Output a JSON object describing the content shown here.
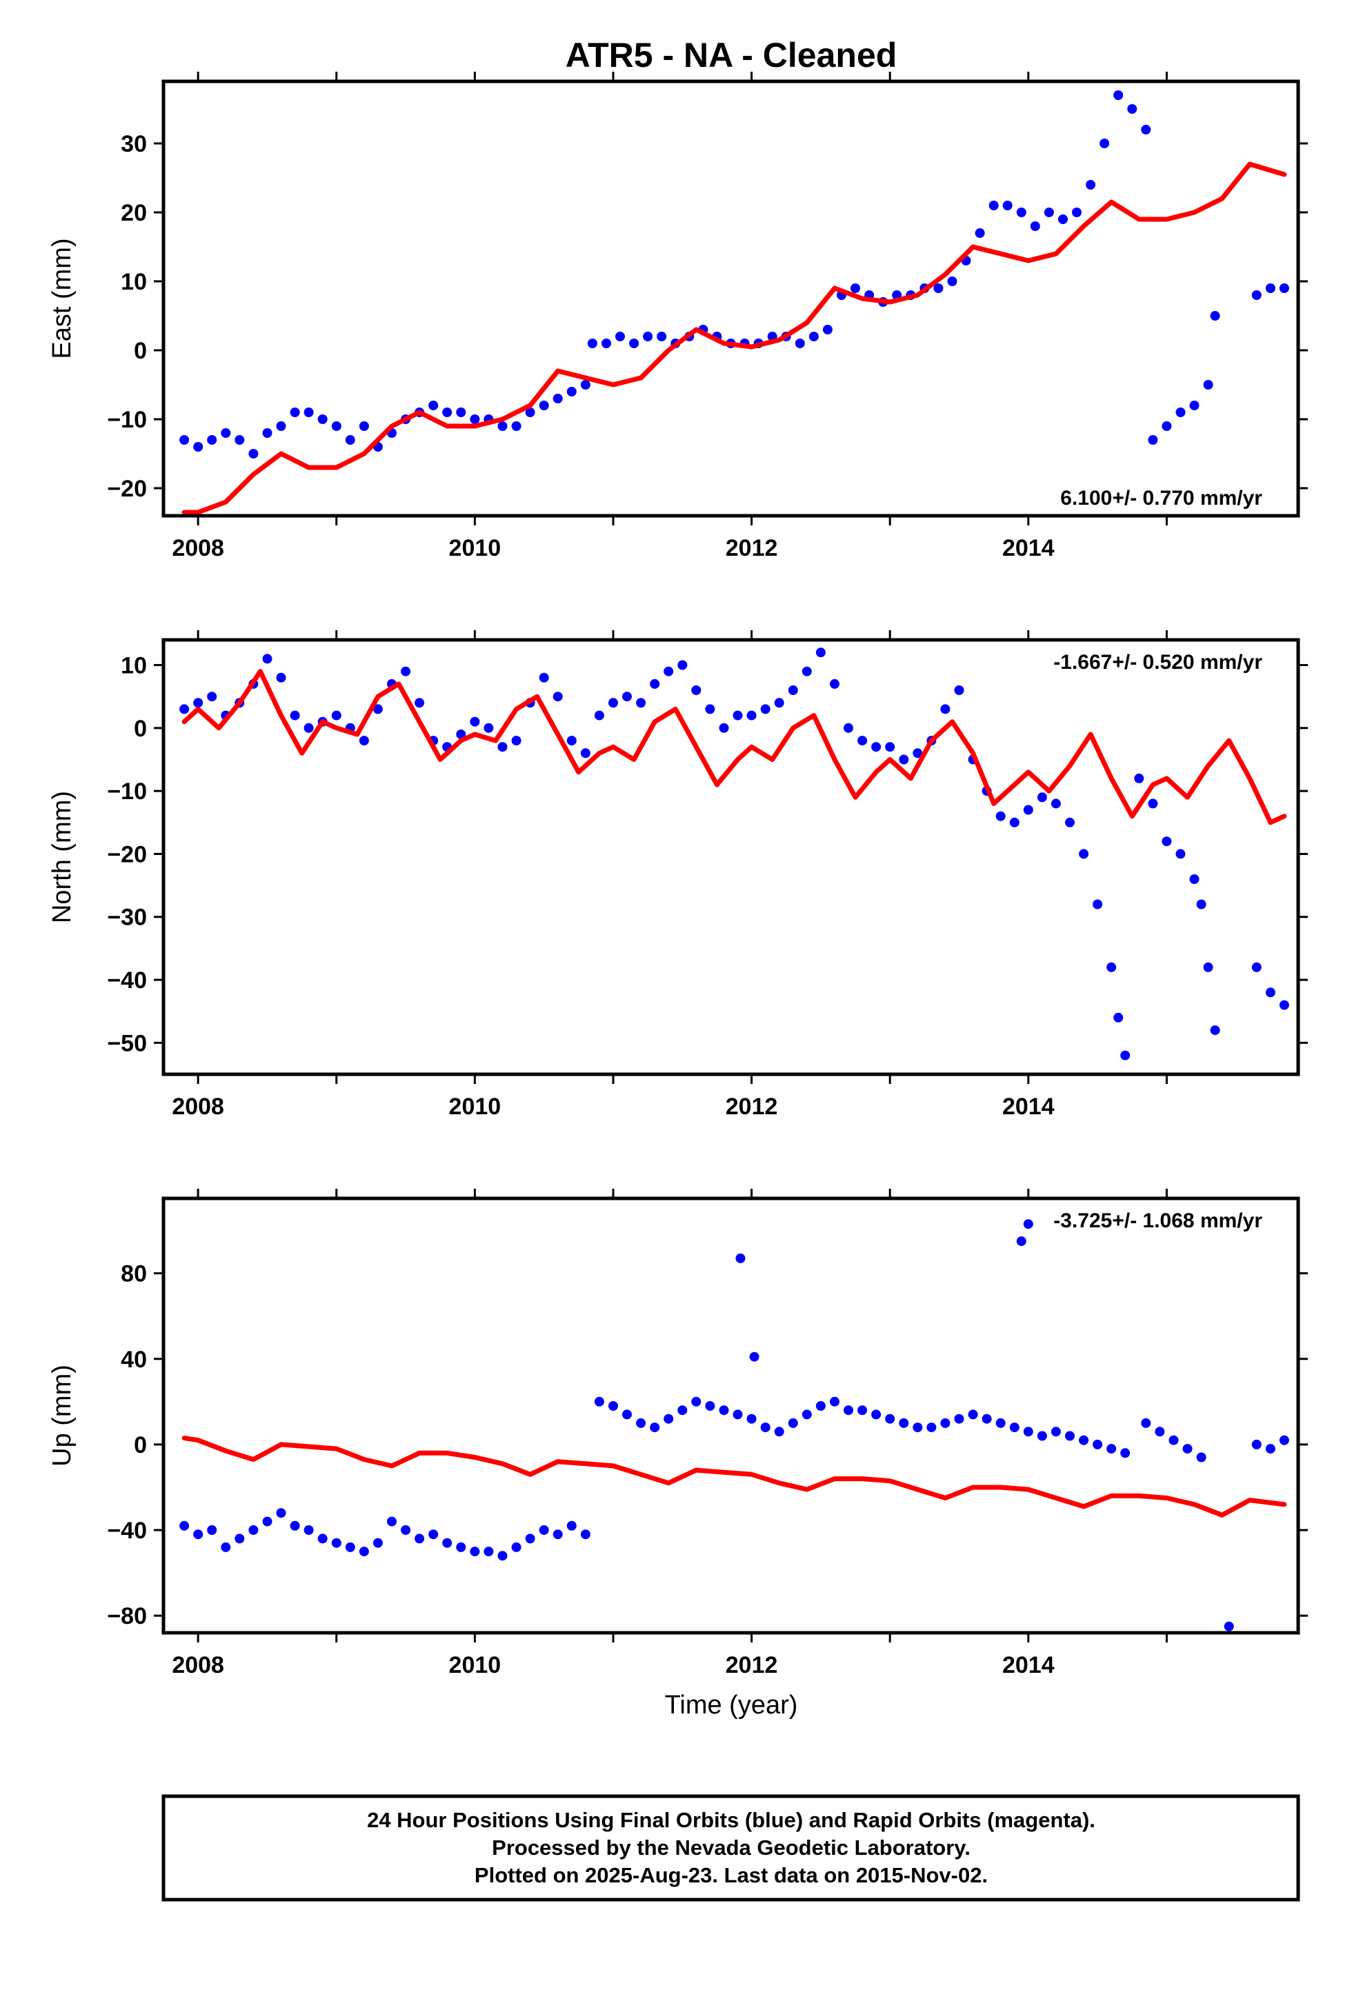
{
  "title": "ATR5  - NA - Cleaned",
  "xlabel": "Time (year)",
  "footer": {
    "line1": "24 Hour Positions Using Final Orbits (blue) and Rapid Orbits (magenta).",
    "line2": "Processed by the Nevada Geodetic Laboratory.",
    "line3": "Plotted on 2025-Aug-23. Last data on 2015-Nov-02."
  },
  "colors": {
    "observations": "#0000ff",
    "model": "#ff0000",
    "frame": "#000000"
  },
  "chart_data": [
    {
      "type": "scatter",
      "ylabel": "East (mm)",
      "rate_label": "6.100+/- 0.770 mm/yr",
      "xlim": [
        2007.75,
        2015.95
      ],
      "ylim": [
        -24,
        39
      ],
      "xticks": [
        2008,
        2010,
        2012,
        2014
      ],
      "yticks": [
        -20,
        -10,
        0,
        10,
        20,
        30
      ],
      "series": [
        {
          "kind": "observations",
          "x": [
            2007.9,
            2008.0,
            2008.1,
            2008.2,
            2008.3,
            2008.4,
            2008.5,
            2008.6,
            2008.7,
            2008.8,
            2008.9,
            2009.0,
            2009.1,
            2009.2,
            2009.3,
            2009.4,
            2009.5,
            2009.6,
            2009.7,
            2009.8,
            2009.9,
            2010.0,
            2010.1,
            2010.2,
            2010.3,
            2010.4,
            2010.5,
            2010.6,
            2010.7,
            2010.8,
            2010.85,
            2010.95,
            2011.05,
            2011.15,
            2011.25,
            2011.35,
            2011.45,
            2011.55,
            2011.65,
            2011.75,
            2011.85,
            2011.95,
            2012.05,
            2012.15,
            2012.25,
            2012.35,
            2012.45,
            2012.55,
            2012.65,
            2012.75,
            2012.85,
            2012.95,
            2013.05,
            2013.15,
            2013.25,
            2013.35,
            2013.45,
            2013.55,
            2013.65,
            2013.75,
            2013.85,
            2013.95,
            2014.05,
            2014.15,
            2014.25,
            2014.35,
            2014.45,
            2014.55,
            2014.65,
            2014.75,
            2014.85,
            2014.9,
            2015.0,
            2015.1,
            2015.2,
            2015.3,
            2015.35,
            2015.65,
            2015.75,
            2015.85
          ],
          "y": [
            -13,
            -14,
            -13,
            -12,
            -13,
            -15,
            -12,
            -11,
            -9,
            -9,
            -10,
            -11,
            -13,
            -11,
            -14,
            -12,
            -10,
            -9,
            -8,
            -9,
            -9,
            -10,
            -10,
            -11,
            -11,
            -9,
            -8,
            -7,
            -6,
            -5,
            1,
            1,
            2,
            1,
            2,
            2,
            1,
            2,
            3,
            2,
            1,
            1,
            1,
            2,
            2,
            1,
            2,
            3,
            8,
            9,
            8,
            7,
            8,
            8,
            9,
            9,
            10,
            13,
            17,
            21,
            21,
            20,
            18,
            20,
            19,
            20,
            24,
            30,
            37,
            35,
            32,
            -13,
            -11,
            -9,
            -8,
            -5,
            5,
            8,
            9,
            9
          ]
        },
        {
          "kind": "model",
          "x": [
            2007.9,
            2008.0,
            2008.2,
            2008.4,
            2008.6,
            2008.8,
            2009.0,
            2009.2,
            2009.4,
            2009.6,
            2009.8,
            2010.0,
            2010.2,
            2010.4,
            2010.6,
            2010.8,
            2011.0,
            2011.2,
            2011.4,
            2011.6,
            2011.8,
            2012.0,
            2012.2,
            2012.4,
            2012.6,
            2012.8,
            2013.0,
            2013.2,
            2013.4,
            2013.6,
            2013.8,
            2014.0,
            2014.2,
            2014.4,
            2014.6,
            2014.8,
            2015.0,
            2015.2,
            2015.4,
            2015.6,
            2015.85
          ],
          "y": [
            -23.5,
            -23.5,
            -22,
            -18,
            -15,
            -17,
            -17,
            -15,
            -11,
            -9,
            -11,
            -11,
            -10,
            -8,
            -3,
            -4,
            -5,
            -4,
            0,
            3,
            1,
            0.5,
            1.5,
            4,
            9,
            7.5,
            7,
            8,
            11,
            15,
            14,
            13,
            14,
            18,
            21.5,
            19,
            19,
            20,
            22,
            27,
            25.5
          ]
        }
      ]
    },
    {
      "type": "scatter",
      "ylabel": "North (mm)",
      "rate_label": "-1.667+/- 0.520 mm/yr",
      "xlim": [
        2007.75,
        2015.95
      ],
      "ylim": [
        -55,
        14
      ],
      "xticks": [
        2008,
        2010,
        2012,
        2014
      ],
      "yticks": [
        -50,
        -40,
        -30,
        -20,
        -10,
        0,
        10
      ],
      "series": [
        {
          "kind": "observations",
          "x": [
            2007.9,
            2008.0,
            2008.1,
            2008.2,
            2008.3,
            2008.4,
            2008.5,
            2008.6,
            2008.7,
            2008.8,
            2008.9,
            2009.0,
            2009.1,
            2009.2,
            2009.3,
            2009.4,
            2009.5,
            2009.6,
            2009.7,
            2009.8,
            2009.9,
            2010.0,
            2010.1,
            2010.2,
            2010.3,
            2010.4,
            2010.5,
            2010.6,
            2010.7,
            2010.8,
            2010.9,
            2011.0,
            2011.1,
            2011.2,
            2011.3,
            2011.4,
            2011.5,
            2011.6,
            2011.7,
            2011.8,
            2011.9,
            2012.0,
            2012.1,
            2012.2,
            2012.3,
            2012.4,
            2012.5,
            2012.6,
            2012.7,
            2012.8,
            2012.9,
            2013.0,
            2013.1,
            2013.2,
            2013.3,
            2013.4,
            2013.5,
            2013.6,
            2013.7,
            2013.8,
            2013.9,
            2014.0,
            2014.1,
            2014.2,
            2014.3,
            2014.4,
            2014.5,
            2014.6,
            2014.65,
            2014.7,
            2014.8,
            2014.9,
            2015.0,
            2015.1,
            2015.2,
            2015.25,
            2015.3,
            2015.35,
            2015.65,
            2015.75,
            2015.85
          ],
          "y": [
            3,
            4,
            5,
            2,
            4,
            7,
            11,
            8,
            2,
            0,
            1,
            2,
            0,
            -2,
            3,
            7,
            9,
            4,
            -2,
            -3,
            -1,
            1,
            0,
            -3,
            -2,
            4,
            8,
            5,
            -2,
            -4,
            2,
            4,
            5,
            4,
            7,
            9,
            10,
            6,
            3,
            0,
            2,
            2,
            3,
            4,
            6,
            9,
            12,
            7,
            0,
            -2,
            -3,
            -3,
            -5,
            -4,
            -2,
            3,
            6,
            -5,
            -10,
            -14,
            -15,
            -13,
            -11,
            -12,
            -15,
            -20,
            -28,
            -38,
            -46,
            -52,
            -8,
            -12,
            -18,
            -20,
            -24,
            -28,
            -38,
            -48,
            -38,
            -42,
            -44
          ]
        },
        {
          "kind": "model",
          "x": [
            2007.9,
            2008.0,
            2008.15,
            2008.3,
            2008.45,
            2008.6,
            2008.75,
            2008.9,
            2009.0,
            2009.15,
            2009.3,
            2009.45,
            2009.6,
            2009.75,
            2009.9,
            2010.0,
            2010.15,
            2010.3,
            2010.45,
            2010.6,
            2010.75,
            2010.9,
            2011.0,
            2011.15,
            2011.3,
            2011.45,
            2011.6,
            2011.75,
            2011.9,
            2012.0,
            2012.15,
            2012.3,
            2012.45,
            2012.6,
            2012.75,
            2012.9,
            2013.0,
            2013.15,
            2013.3,
            2013.45,
            2013.6,
            2013.75,
            2013.9,
            2014.0,
            2014.15,
            2014.3,
            2014.45,
            2014.6,
            2014.75,
            2014.9,
            2015.0,
            2015.15,
            2015.3,
            2015.45,
            2015.6,
            2015.75,
            2015.85
          ],
          "y": [
            1,
            3,
            0,
            4,
            9,
            2,
            -4,
            1,
            0,
            -1,
            5,
            7,
            1,
            -5,
            -2,
            -1,
            -2,
            3,
            5,
            -1,
            -7,
            -4,
            -3,
            -5,
            1,
            3,
            -3,
            -9,
            -5,
            -3,
            -5,
            0,
            2,
            -5,
            -11,
            -7,
            -5,
            -8,
            -2,
            1,
            -4,
            -12,
            -9,
            -7,
            -10,
            -6,
            -1,
            -8,
            -14,
            -9,
            -8,
            -11,
            -6,
            -2,
            -8,
            -15,
            -14
          ]
        }
      ]
    },
    {
      "type": "scatter",
      "ylabel": "Up (mm)",
      "rate_label": "-3.725+/- 1.068 mm/yr",
      "xlim": [
        2007.75,
        2015.95
      ],
      "ylim": [
        -88,
        115
      ],
      "xticks": [
        2008,
        2010,
        2012,
        2014
      ],
      "yticks": [
        -80,
        -40,
        0,
        40,
        80
      ],
      "series": [
        {
          "kind": "observations",
          "x": [
            2007.9,
            2008.0,
            2008.1,
            2008.2,
            2008.3,
            2008.4,
            2008.5,
            2008.6,
            2008.7,
            2008.8,
            2008.9,
            2009.0,
            2009.1,
            2009.2,
            2009.3,
            2009.4,
            2009.5,
            2009.6,
            2009.7,
            2009.8,
            2009.9,
            2010.0,
            2010.1,
            2010.2,
            2010.3,
            2010.4,
            2010.5,
            2010.6,
            2010.7,
            2010.8,
            2010.9,
            2011.0,
            2011.1,
            2011.2,
            2011.3,
            2011.4,
            2011.5,
            2011.6,
            2011.7,
            2011.8,
            2011.9,
            2012.0,
            2012.1,
            2012.2,
            2012.3,
            2012.4,
            2012.5,
            2012.6,
            2012.7,
            2012.8,
            2012.9,
            2013.0,
            2013.1,
            2013.2,
            2013.3,
            2013.4,
            2013.5,
            2013.6,
            2013.7,
            2013.8,
            2013.9,
            2014.0,
            2014.1,
            2014.2,
            2014.3,
            2014.4,
            2014.5,
            2014.6,
            2014.7,
            2014.85,
            2014.95,
            2015.05,
            2015.15,
            2015.25,
            2015.65,
            2015.75,
            2015.85,
            2011.92,
            2012.02,
            2013.95,
            2014.0,
            2015.45
          ],
          "y": [
            -38,
            -42,
            -40,
            -48,
            -44,
            -40,
            -36,
            -32,
            -38,
            -40,
            -44,
            -46,
            -48,
            -50,
            -46,
            -36,
            -40,
            -44,
            -42,
            -46,
            -48,
            -50,
            -50,
            -52,
            -48,
            -44,
            -40,
            -42,
            -38,
            -42,
            20,
            18,
            14,
            10,
            8,
            12,
            16,
            20,
            18,
            16,
            14,
            12,
            8,
            6,
            10,
            14,
            18,
            20,
            16,
            16,
            14,
            12,
            10,
            8,
            8,
            10,
            12,
            14,
            12,
            10,
            8,
            6,
            4,
            6,
            4,
            2,
            0,
            -2,
            -4,
            10,
            6,
            2,
            -2,
            -6,
            0,
            -2,
            2,
            87,
            41,
            95,
            103,
            -85
          ]
        },
        {
          "kind": "model",
          "x": [
            2007.9,
            2008.0,
            2008.2,
            2008.4,
            2008.6,
            2008.8,
            2009.0,
            2009.2,
            2009.4,
            2009.6,
            2009.8,
            2010.0,
            2010.2,
            2010.4,
            2010.6,
            2010.8,
            2011.0,
            2011.2,
            2011.4,
            2011.6,
            2011.8,
            2012.0,
            2012.2,
            2012.4,
            2012.6,
            2012.8,
            2013.0,
            2013.2,
            2013.4,
            2013.6,
            2013.8,
            2014.0,
            2014.2,
            2014.4,
            2014.6,
            2014.8,
            2015.0,
            2015.2,
            2015.4,
            2015.6,
            2015.85
          ],
          "y": [
            3,
            2,
            -3,
            -7,
            0,
            -1,
            -2,
            -7,
            -10,
            -4,
            -4,
            -6,
            -9,
            -14,
            -8,
            -9,
            -10,
            -14,
            -18,
            -12,
            -13,
            -14,
            -18,
            -21,
            -16,
            -16,
            -17,
            -21,
            -25,
            -20,
            -20,
            -21,
            -25,
            -29,
            -24,
            -24,
            -25,
            -28,
            -33,
            -26,
            -28
          ]
        }
      ]
    }
  ]
}
